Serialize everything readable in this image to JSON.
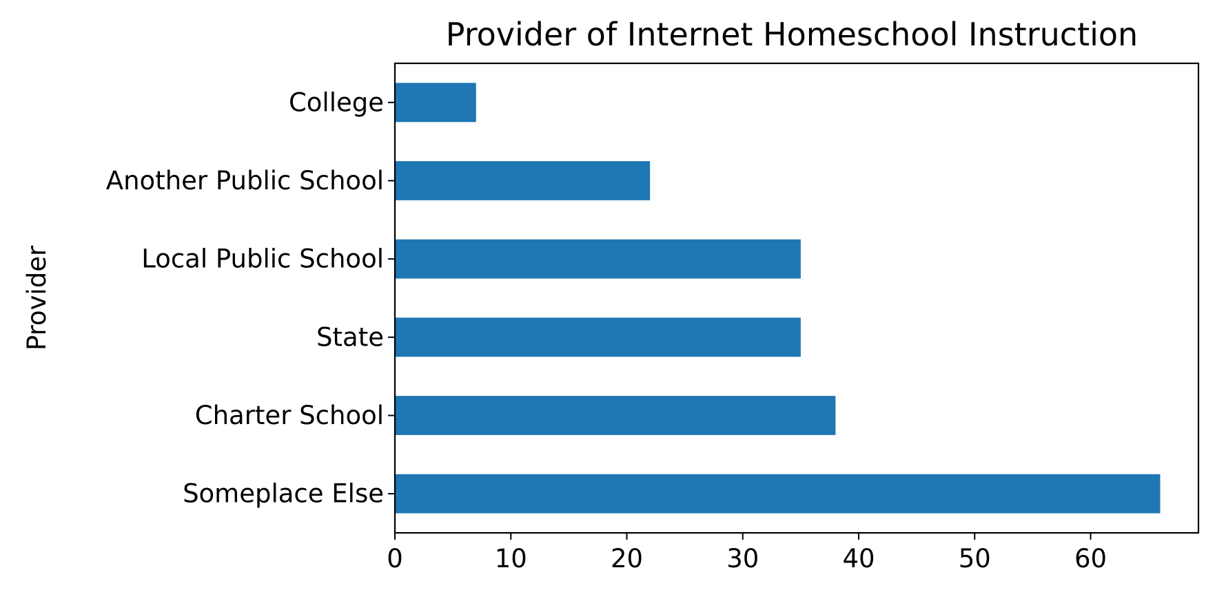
{
  "chart_data": {
    "type": "bar",
    "orientation": "horizontal",
    "title": "Provider of Internet Homeschool Instruction",
    "xlabel": "",
    "ylabel": "Provider",
    "categories": [
      "College",
      "Another Public School",
      "Local Public School",
      "State",
      "Charter School",
      "Someplace Else"
    ],
    "values": [
      7,
      22,
      35,
      35,
      38,
      66
    ],
    "xlim": [
      0,
      69.3
    ],
    "xticks": [
      0,
      10,
      20,
      30,
      40,
      50,
      60
    ],
    "grid": false,
    "legend": "none",
    "bar_color": "#1f77b4"
  }
}
